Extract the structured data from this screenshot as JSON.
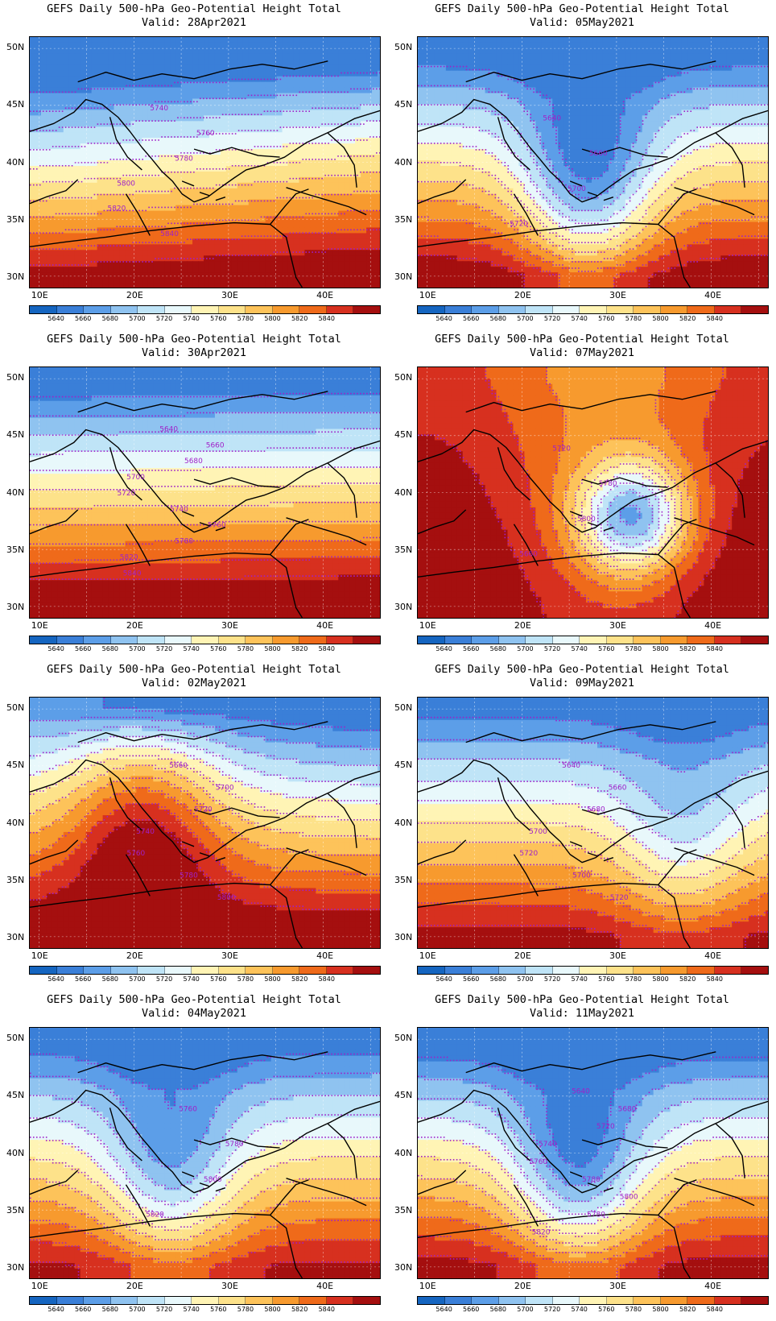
{
  "title": "GEFS Daily 500-hPa Geo-Potential Height Total",
  "valid_prefix": "Valid:",
  "lat_labels": [
    "50N",
    "45N",
    "40N",
    "35N",
    "30N"
  ],
  "lon_labels": [
    "10E",
    "20E",
    "30E",
    "40E"
  ],
  "colorbar": {
    "labels": [
      "5640",
      "5660",
      "5680",
      "5700",
      "5720",
      "5740",
      "5760",
      "5780",
      "5800",
      "5820",
      "5840"
    ],
    "colors": [
      "#1565c0",
      "#3a7fd8",
      "#5c9ee8",
      "#8fc3f0",
      "#bfe4f7",
      "#e8f8fb",
      "#fff4b5",
      "#fde28a",
      "#fdc35a",
      "#f79a2e",
      "#ef6a1a",
      "#d7301f",
      "#a50f0f"
    ]
  },
  "contour_color": "#a020c8",
  "panels": [
    {
      "valid": "28Apr2021",
      "contour_labels": [
        "5740",
        "5760",
        "5780",
        "5800",
        "5820",
        "5840"
      ],
      "chart_data": {
        "type": "heatmap",
        "pattern": "zonal",
        "south_value": 5860,
        "north_value": 5600,
        "tilt": 0.25
      }
    },
    {
      "valid": "05May2021",
      "contour_labels": [
        "5640",
        "5660",
        "5700",
        "5720"
      ],
      "chart_data": {
        "type": "heatmap",
        "pattern": "trough",
        "trough_lon": 27,
        "trough_depth": 120,
        "south_value": 5860,
        "north_value": 5620
      }
    },
    {
      "valid": "30Apr2021",
      "contour_labels": [
        "5640",
        "5660",
        "5680",
        "5700",
        "5720",
        "5740",
        "5760",
        "5780",
        "5820",
        "5840"
      ],
      "chart_data": {
        "type": "heatmap",
        "pattern": "zonal",
        "south_value": 5870,
        "north_value": 5620,
        "tilt": 0.05
      }
    },
    {
      "valid": "07May2021",
      "contour_labels": [
        "5720",
        "5780",
        "5800",
        "5660"
      ],
      "chart_data": {
        "type": "heatmap",
        "pattern": "cutoff_low",
        "low_lon": 31.5,
        "low_lat": 38,
        "low_value": 5655,
        "south_value": 5850,
        "north_value": 5640
      }
    },
    {
      "valid": "02May2021",
      "contour_labels": [
        "5660",
        "5700",
        "5720",
        "5740",
        "5760",
        "5780",
        "5800"
      ],
      "chart_data": {
        "type": "heatmap",
        "pattern": "ridge",
        "ridge_lon": 21,
        "south_value": 5870,
        "north_value": 5630
      }
    },
    {
      "valid": "09May2021",
      "contour_labels": [
        "5640",
        "5660",
        "5680",
        "5700",
        "5720",
        "5700",
        "5720"
      ],
      "chart_data": {
        "type": "heatmap",
        "pattern": "trough",
        "trough_lon": 37,
        "trough_depth": 60,
        "south_value": 5850,
        "north_value": 5630
      }
    },
    {
      "valid": "04May2021",
      "contour_labels": [
        "5760",
        "5780",
        "5800",
        "5820"
      ],
      "chart_data": {
        "type": "heatmap",
        "pattern": "trough",
        "trough_lon": 24,
        "trough_depth": 90,
        "south_value": 5845,
        "north_value": 5625
      }
    },
    {
      "valid": "11May2021",
      "contour_labels": [
        "5640",
        "5680",
        "5720",
        "5740",
        "5760",
        "5780",
        "5800",
        "5780",
        "5820"
      ],
      "chart_data": {
        "type": "heatmap",
        "pattern": "trough",
        "trough_lon": 26,
        "trough_depth": 110,
        "south_value": 5850,
        "north_value": 5620
      }
    }
  ]
}
